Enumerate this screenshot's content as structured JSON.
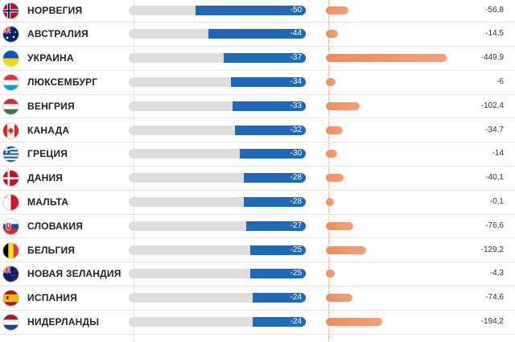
{
  "chart_data": {
    "type": "bar",
    "rows": [
      {
        "country": "НОРВЕГИЯ",
        "flag": "norway-flag",
        "value_a": -50,
        "value_a_label": "-50",
        "value_b": -56.8,
        "value_b_label": "-56,8"
      },
      {
        "country": "АВСТРАЛИЯ",
        "flag": "australia-flag",
        "value_a": -44,
        "value_a_label": "-44",
        "value_b": -14.5,
        "value_b_label": "-14,5"
      },
      {
        "country": "УКРАИНА",
        "flag": "ukraine-flag",
        "value_a": -37,
        "value_a_label": "-37",
        "value_b": -449.9,
        "value_b_label": "-449,9"
      },
      {
        "country": "ЛЮКСЕМБУРГ",
        "flag": "luxembourg-flag",
        "value_a": -34,
        "value_a_label": "-34",
        "value_b": -6,
        "value_b_label": "-6"
      },
      {
        "country": "ВЕНГРИЯ",
        "flag": "hungary-flag",
        "value_a": -33,
        "value_a_label": "-33",
        "value_b": -102.4,
        "value_b_label": "-102,4"
      },
      {
        "country": "КАНАДА",
        "flag": "canada-flag",
        "value_a": -32,
        "value_a_label": "-32",
        "value_b": -34.7,
        "value_b_label": "-34,7"
      },
      {
        "country": "ГРЕЦИЯ",
        "flag": "greece-flag",
        "value_a": -30,
        "value_a_label": "-30",
        "value_b": -14,
        "value_b_label": "-14"
      },
      {
        "country": "ДАНИЯ",
        "flag": "denmark-flag",
        "value_a": -28,
        "value_a_label": "-28",
        "value_b": -40.1,
        "value_b_label": "-40,1"
      },
      {
        "country": "МАЛЬТА",
        "flag": "malta-flag",
        "value_a": -28,
        "value_a_label": "-28",
        "value_b": -0.1,
        "value_b_label": "-0,1"
      },
      {
        "country": "СЛОВАКИЯ",
        "flag": "slovakia-flag",
        "value_a": -27,
        "value_a_label": "-27",
        "value_b": -76.6,
        "value_b_label": "-76,6"
      },
      {
        "country": "БЕЛЬГИЯ",
        "flag": "belgium-flag",
        "value_a": -25,
        "value_a_label": "-25",
        "value_b": -129.2,
        "value_b_label": "-129,2"
      },
      {
        "country": "НОВАЯ ЗЕЛАНДИЯ",
        "flag": "new-zealand-flag",
        "value_a": -25,
        "value_a_label": "-25",
        "value_b": -4.3,
        "value_b_label": "-4,3"
      },
      {
        "country": "ИСПАНИЯ",
        "flag": "spain-flag",
        "value_a": -24,
        "value_a_label": "-24",
        "value_b": -74.6,
        "value_b_label": "-74,6"
      },
      {
        "country": "НИДЕРЛАНДЫ",
        "flag": "netherlands-flag",
        "value_a": -24,
        "value_a_label": "-24",
        "value_b": -194.2,
        "value_b_label": "-194,2"
      }
    ],
    "colors": {
      "bar_a": "#1e69b8",
      "bar_a_track": "#dedede",
      "bar_b": "#ef8c5f"
    }
  }
}
